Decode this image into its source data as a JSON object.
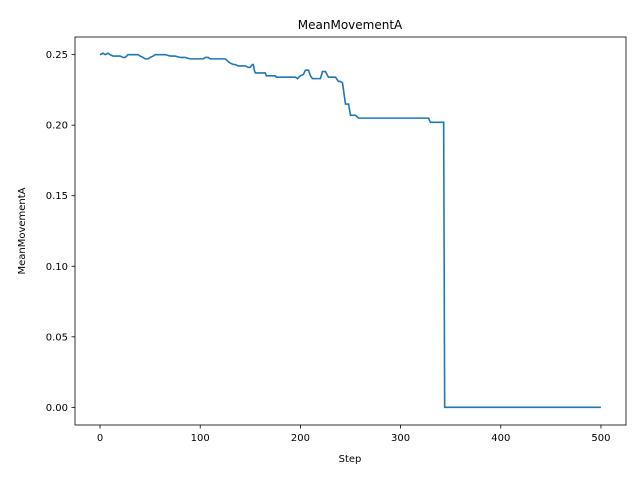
{
  "chart_data": {
    "type": "line",
    "title": "MeanMovementA",
    "xlabel": "Step",
    "ylabel": "MeanMovementA",
    "xlim": [
      -25,
      525
    ],
    "ylim": [
      -0.0125,
      0.2625
    ],
    "grid": false,
    "xticks": [
      0,
      100,
      200,
      300,
      400,
      500
    ],
    "xtick_labels": [
      "0",
      "100",
      "200",
      "300",
      "400",
      "500"
    ],
    "yticks": [
      0.0,
      0.05,
      0.1,
      0.15,
      0.2,
      0.25
    ],
    "ytick_labels": [
      "0.00",
      "0.05",
      "0.10",
      "0.15",
      "0.20",
      "0.25"
    ],
    "series": [
      {
        "color": "#1f77b4",
        "x": [
          0,
          3,
          5,
          8,
          10,
          13,
          15,
          20,
          23,
          25,
          28,
          30,
          35,
          38,
          40,
          43,
          45,
          48,
          50,
          53,
          55,
          58,
          60,
          65,
          70,
          75,
          80,
          85,
          90,
          95,
          100,
          103,
          105,
          108,
          110,
          113,
          115,
          118,
          120,
          123,
          125,
          128,
          130,
          133,
          135,
          138,
          140,
          145,
          148,
          150,
          152,
          153,
          154,
          155,
          160,
          165,
          166,
          170,
          175,
          176,
          180,
          185,
          190,
          195,
          197,
          200,
          203,
          205,
          208,
          210,
          212,
          215,
          218,
          220,
          222,
          225,
          228,
          230,
          235,
          238,
          240,
          242,
          245,
          248,
          250,
          253,
          255,
          258,
          260,
          270,
          280,
          290,
          300,
          310,
          320,
          325,
          328,
          329,
          330,
          340,
          343,
          344,
          345,
          350,
          400,
          450,
          500
        ],
        "y": [
          0.25,
          0.251,
          0.25,
          0.251,
          0.25,
          0.249,
          0.249,
          0.249,
          0.248,
          0.248,
          0.25,
          0.25,
          0.25,
          0.25,
          0.249,
          0.248,
          0.247,
          0.247,
          0.248,
          0.249,
          0.25,
          0.25,
          0.25,
          0.25,
          0.249,
          0.249,
          0.248,
          0.248,
          0.247,
          0.247,
          0.247,
          0.247,
          0.248,
          0.248,
          0.247,
          0.247,
          0.247,
          0.247,
          0.247,
          0.247,
          0.247,
          0.245,
          0.244,
          0.243,
          0.243,
          0.242,
          0.242,
          0.242,
          0.241,
          0.241,
          0.243,
          0.243,
          0.239,
          0.237,
          0.237,
          0.237,
          0.235,
          0.235,
          0.235,
          0.234,
          0.234,
          0.234,
          0.234,
          0.234,
          0.233,
          0.235,
          0.236,
          0.239,
          0.239,
          0.235,
          0.233,
          0.233,
          0.233,
          0.233,
          0.238,
          0.238,
          0.234,
          0.234,
          0.234,
          0.231,
          0.231,
          0.23,
          0.215,
          0.215,
          0.207,
          0.207,
          0.207,
          0.205,
          0.205,
          0.205,
          0.205,
          0.205,
          0.205,
          0.205,
          0.205,
          0.205,
          0.205,
          0.203,
          0.202,
          0.202,
          0.202,
          0.0,
          0.0,
          0.0,
          0.0,
          0.0,
          0.0
        ]
      }
    ]
  }
}
